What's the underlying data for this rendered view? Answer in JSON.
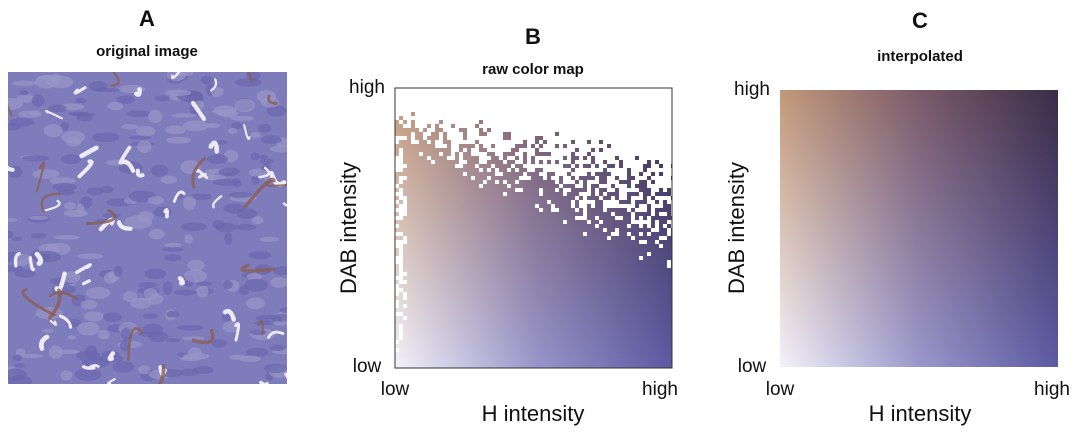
{
  "panels": [
    {
      "letter": "A",
      "title": "original image"
    },
    {
      "letter": "B",
      "title": "raw color map",
      "x_label": "H intensity",
      "y_label": "DAB intensity",
      "x_low": "low",
      "x_high": "high",
      "y_low": "low",
      "y_high": "high"
    },
    {
      "letter": "C",
      "title": "interpolated",
      "x_label": "H intensity",
      "y_label": "DAB intensity",
      "x_low": "low",
      "x_high": "high",
      "y_low": "low",
      "y_high": "high"
    }
  ]
}
